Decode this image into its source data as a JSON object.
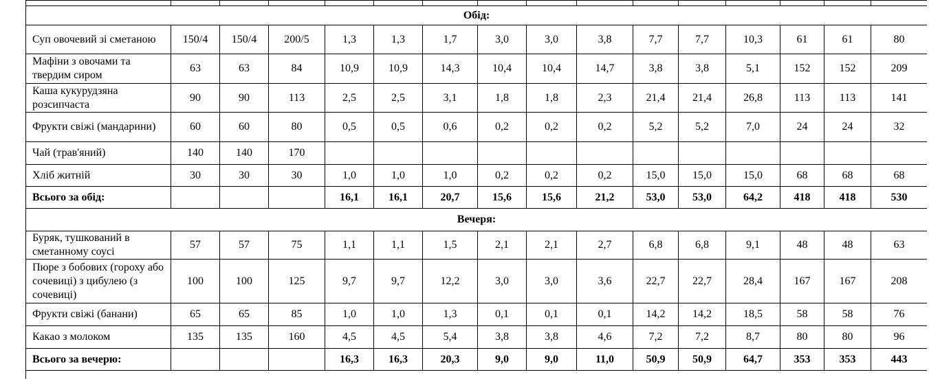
{
  "table": {
    "sections": [
      {
        "title": "Обід:",
        "rows": [
          {
            "name": "Суп овочевий зі сметаною",
            "cells": [
              "150/4",
              "150/4",
              "200/5",
              "1,3",
              "1,3",
              "1,7",
              "3,0",
              "3,0",
              "3,8",
              "7,7",
              "7,7",
              "10,3",
              "61",
              "61",
              "80"
            ]
          },
          {
            "name": "Мафіни з овочами та твердим сиром",
            "cells": [
              "63",
              "63",
              "84",
              "10,9",
              "10,9",
              "14,3",
              "10,4",
              "10,4",
              "14,7",
              "3,8",
              "3,8",
              "5,1",
              "152",
              "152",
              "209"
            ]
          },
          {
            "name": "Каша кукурудзяна розсипчаста",
            "cells": [
              "90",
              "90",
              "113",
              "2,5",
              "2,5",
              "3,1",
              "1,8",
              "1,8",
              "2,3",
              "21,4",
              "21,4",
              "26,8",
              "113",
              "113",
              "141"
            ]
          },
          {
            "name": "Фрукти свіжі (мандарини)",
            "cells": [
              "60",
              "60",
              "80",
              "0,5",
              "0,5",
              "0,6",
              "0,2",
              "0,2",
              "0,2",
              "5,2",
              "5,2",
              "7,0",
              "24",
              "24",
              "32"
            ]
          },
          {
            "name": "Чай (трав'яний)",
            "cells": [
              "140",
              "140",
              "170",
              null,
              null,
              null,
              null,
              null,
              null,
              null,
              null,
              null,
              null,
              null,
              null
            ]
          },
          {
            "name": "Хліб житній",
            "cells": [
              "30",
              "30",
              "30",
              "1,0",
              "1,0",
              "1,0",
              "0,2",
              "0,2",
              "0,2",
              "15,0",
              "15,0",
              "15,0",
              "68",
              "68",
              "68"
            ]
          }
        ],
        "total": {
          "name": "Всього за обід:",
          "cells": [
            null,
            null,
            null,
            "16,1",
            "16,1",
            "20,7",
            "15,6",
            "15,6",
            "21,2",
            "53,0",
            "53,0",
            "64,2",
            "418",
            "418",
            "530"
          ]
        }
      },
      {
        "title": "Вечеря:",
        "rows": [
          {
            "name": "Буряк, тушкований в сметанному соусі",
            "cells": [
              "57",
              "57",
              "75",
              "1,1",
              "1,1",
              "1,5",
              "2,1",
              "2,1",
              "2,7",
              "6,8",
              "6,8",
              "9,1",
              "48",
              "48",
              "63"
            ]
          },
          {
            "name": "Пюре з бобових (гороху або сочевиці) з цибулею (з сочевиці)",
            "cells": [
              "100",
              "100",
              "125",
              "9,7",
              "9,7",
              "12,2",
              "3,0",
              "3,0",
              "3,6",
              "22,7",
              "22,7",
              "28,4",
              "167",
              "167",
              "208"
            ]
          },
          {
            "name": "Фрукти свіжі (банани)",
            "cells": [
              "65",
              "65",
              "85",
              "1,0",
              "1,0",
              "1,3",
              "0,1",
              "0,1",
              "0,1",
              "14,2",
              "14,2",
              "18,5",
              "58",
              "58",
              "76"
            ]
          },
          {
            "name": "Какао з молоком",
            "cells": [
              "135",
              "135",
              "160",
              "4,5",
              "4,5",
              "5,4",
              "3,8",
              "3,8",
              "4,6",
              "7,2",
              "7,2",
              "8,7",
              "80",
              "80",
              "96"
            ]
          }
        ],
        "total": {
          "name": "Всього за вечерю:",
          "cells": [
            null,
            null,
            null,
            "16,3",
            "16,3",
            "20,3",
            "9,0",
            "9,0",
            "11,0",
            "50,9",
            "50,9",
            "64,7",
            "353",
            "353",
            "443"
          ]
        }
      }
    ]
  }
}
